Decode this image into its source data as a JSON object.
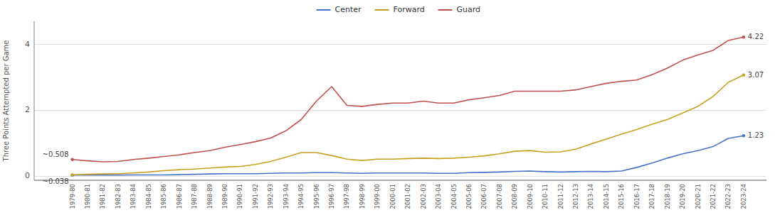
{
  "chart_data": {
    "type": "line",
    "y_label": "Three Points Attempted per Game",
    "categories": [
      "1979-80",
      "1980-81",
      "1981-82",
      "1982-83",
      "1983-84",
      "1984-85",
      "1985-86",
      "1986-87",
      "1987-88",
      "1988-89",
      "1989-90",
      "1990-91",
      "1991-92",
      "1992-93",
      "1993-94",
      "1994-95",
      "1995-96",
      "1996-97",
      "1997-98",
      "1998-99",
      "1999-00",
      "2000-01",
      "2001-02",
      "2002-03",
      "2003-04",
      "2004-05",
      "2005-06",
      "2006-07",
      "2007-08",
      "2008-09",
      "2009-10",
      "2010-11",
      "2011-12",
      "2012-13",
      "2013-14",
      "2014-15",
      "2015-16",
      "2016-17",
      "2017-18",
      "2018-19",
      "2019-20",
      "2020-21",
      "2021-22",
      "2022-23",
      "2023-24"
    ],
    "series": [
      {
        "name": "Center",
        "color": "#4472c4",
        "values": [
          0.038,
          0.038,
          0.038,
          0.038,
          0.04,
          0.04,
          0.04,
          0.05,
          0.06,
          0.07,
          0.08,
          0.08,
          0.08,
          0.09,
          0.1,
          0.1,
          0.11,
          0.11,
          0.1,
          0.09,
          0.1,
          0.1,
          0.1,
          0.1,
          0.09,
          0.09,
          0.11,
          0.12,
          0.13,
          0.15,
          0.16,
          0.14,
          0.13,
          0.14,
          0.15,
          0.14,
          0.16,
          0.27,
          0.4,
          0.55,
          0.68,
          0.78,
          0.9,
          1.15,
          1.23
        ]
      },
      {
        "name": "Forward",
        "color": "#c8a020",
        "values": [
          0.04,
          0.06,
          0.07,
          0.08,
          0.1,
          0.13,
          0.17,
          0.2,
          0.22,
          0.25,
          0.28,
          0.3,
          0.36,
          0.45,
          0.58,
          0.72,
          0.72,
          0.63,
          0.52,
          0.48,
          0.52,
          0.52,
          0.54,
          0.55,
          0.54,
          0.55,
          0.58,
          0.62,
          0.68,
          0.76,
          0.78,
          0.73,
          0.74,
          0.82,
          0.98,
          1.13,
          1.28,
          1.42,
          1.58,
          1.72,
          1.92,
          2.12,
          2.42,
          2.85,
          3.07
        ]
      },
      {
        "name": "Guard",
        "color": "#c0504d",
        "values": [
          0.508,
          0.47,
          0.44,
          0.45,
          0.51,
          0.55,
          0.6,
          0.65,
          0.72,
          0.78,
          0.88,
          0.96,
          1.05,
          1.16,
          1.38,
          1.72,
          2.28,
          2.72,
          2.15,
          2.12,
          2.18,
          2.22,
          2.22,
          2.28,
          2.22,
          2.22,
          2.32,
          2.38,
          2.45,
          2.58,
          2.58,
          2.58,
          2.58,
          2.62,
          2.72,
          2.82,
          2.88,
          2.92,
          3.08,
          3.28,
          3.52,
          3.68,
          3.82,
          4.12,
          4.22
        ]
      }
    ],
    "annotations": [
      {
        "text": "4.22",
        "x": "2023-24",
        "y": 4.22
      },
      {
        "text": "3.07",
        "x": "2023-24",
        "y": 3.07
      },
      {
        "text": "1.23",
        "x": "2023-24",
        "y": 1.23
      },
      {
        "text": "~0.508",
        "x": "1979-80",
        "y": 0.508
      },
      {
        "text": "~0.038",
        "x": "1979-80",
        "y": 0.038
      }
    ],
    "ylim": [
      -0.12,
      4.7
    ],
    "yticks": [
      0,
      2,
      4
    ],
    "grid": true,
    "legend": "top"
  }
}
